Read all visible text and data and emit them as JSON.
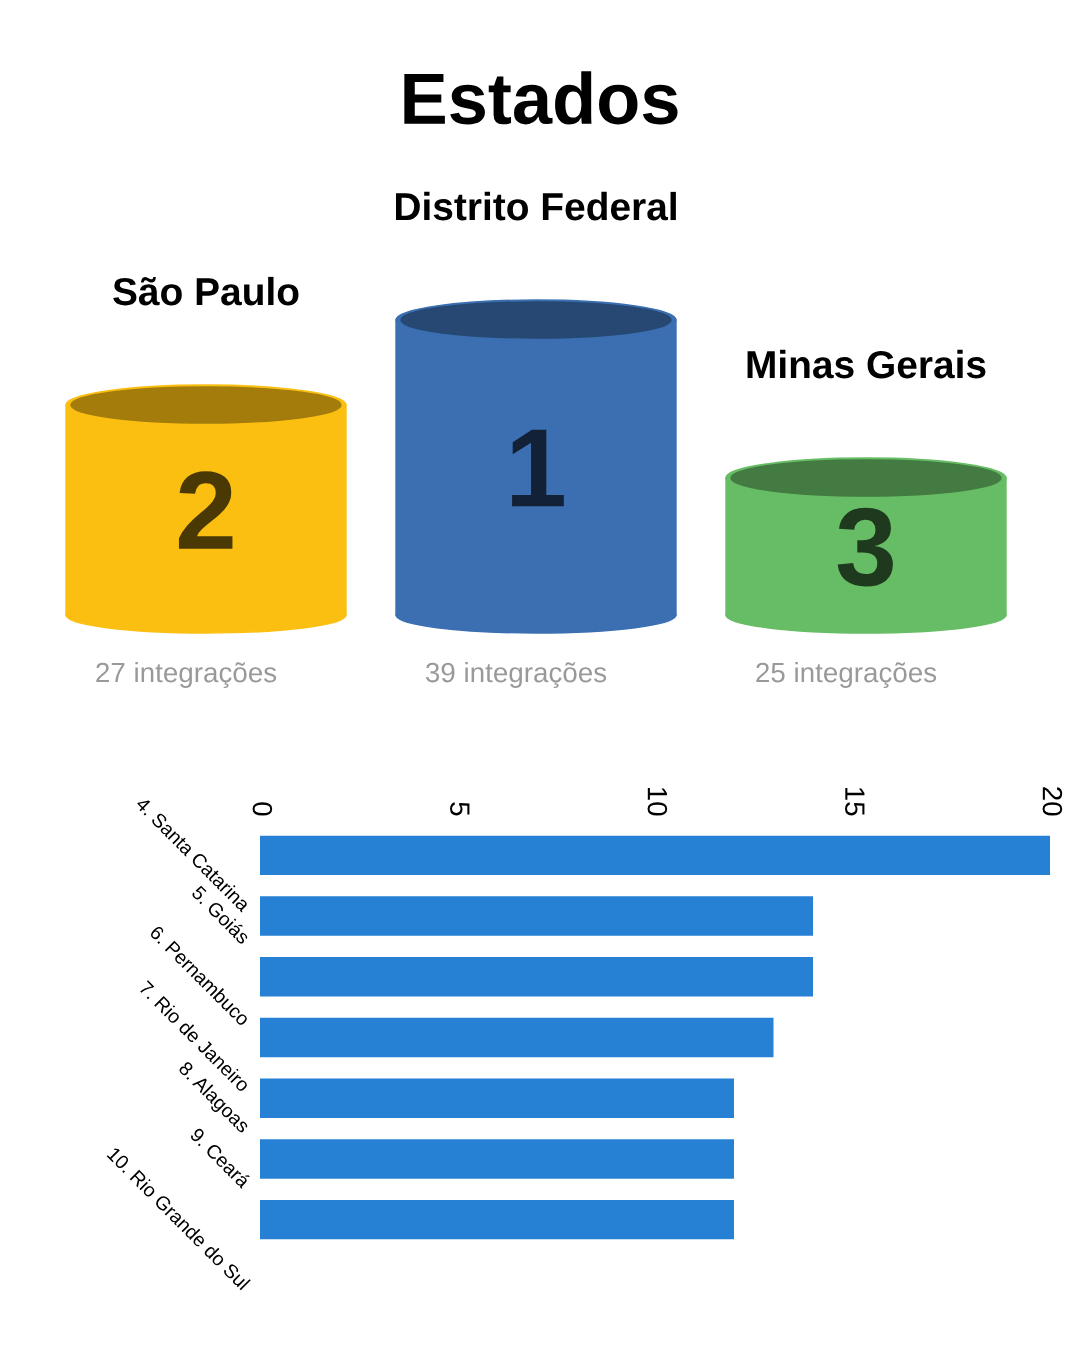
{
  "chart_data": [
    {
      "type": "other",
      "title": "Estados",
      "categories": [
        "São Paulo",
        "Distrito Federal",
        "Minas Gerais"
      ],
      "values": [
        27,
        39,
        25
      ],
      "value_labels": [
        "27 integrações",
        "39 integrações",
        "25 integrações"
      ],
      "colors": [
        "#fbbf12",
        "#3b6fb1",
        "#67bd65"
      ],
      "annotations": [
        "2",
        "1",
        "3"
      ]
    },
    {
      "type": "bar",
      "orientation": "horizontal",
      "categories": [
        "4. Santa Catarina",
        "5. Goiás",
        "6. Pernambuco",
        "7. Rio de Janeiro",
        "8. Alagoas",
        "9. Ceará",
        "10. Rio Grande do Sul"
      ],
      "values": [
        20,
        14,
        14,
        13,
        12,
        12,
        12
      ],
      "color": "#2680d4",
      "xlim": [
        0,
        20
      ],
      "xticks": [
        0,
        5,
        10,
        15,
        20
      ]
    }
  ]
}
